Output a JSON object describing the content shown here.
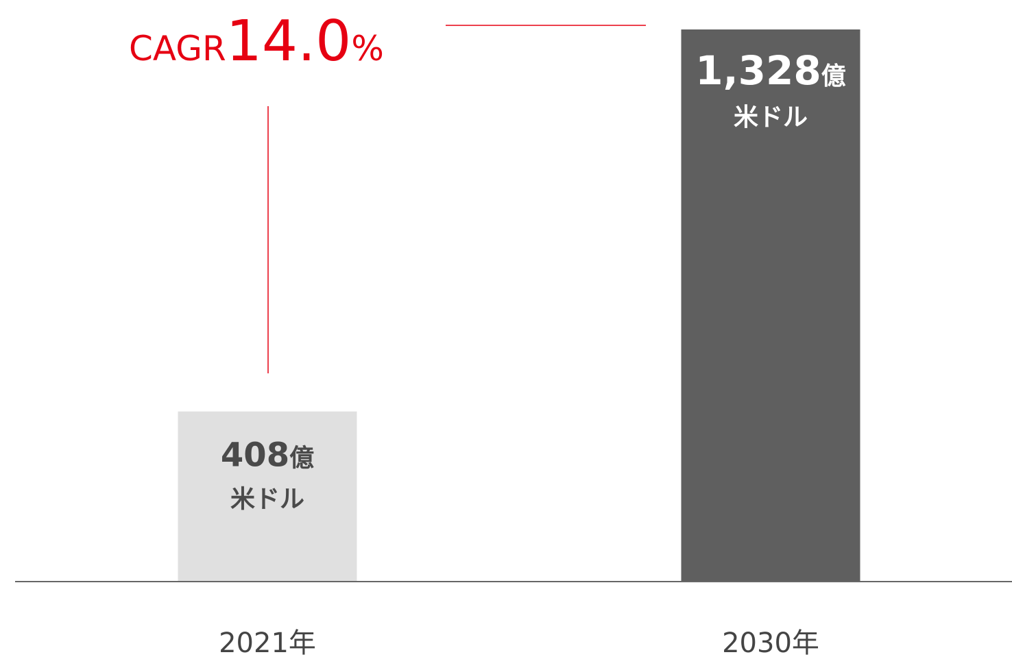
{
  "chart_data": {
    "type": "bar",
    "categories": [
      "2021年",
      "2030年"
    ],
    "values": [
      408,
      1328
    ],
    "value_labels": [
      "408億",
      "1,328億"
    ],
    "unit": "米ドル",
    "colors": [
      "#e0e0e0",
      "#5f5f5f"
    ],
    "label_colors": [
      "#4a4a4a",
      "#ffffff"
    ],
    "annotation": {
      "prefix": "CAGR",
      "value": "14.0",
      "suffix": "%",
      "color": "#e60012"
    }
  }
}
